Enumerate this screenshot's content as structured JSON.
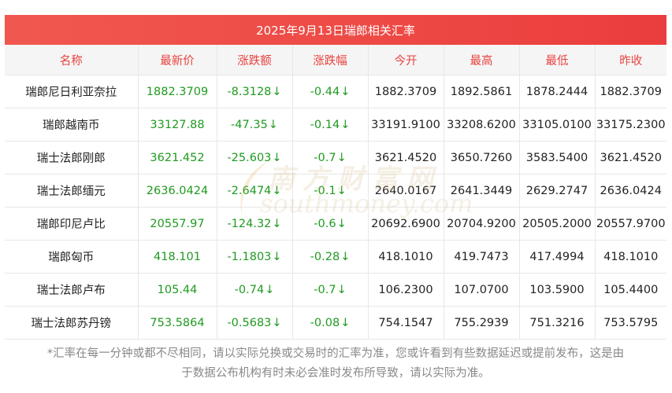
{
  "title": "2025年9月13日瑞郎相关汇率",
  "headers": [
    "名称",
    "最新价",
    "涨跌额",
    "涨跌幅",
    "今开",
    "最高",
    "最低",
    "昨收"
  ],
  "down_arrow": "↓",
  "rows": [
    {
      "name": "瑞郎尼日利亚奈拉",
      "latest": "1882.3709",
      "change": "-8.3128",
      "pct": "-0.44",
      "open": "1882.3709",
      "high": "1892.5861",
      "low": "1878.2444",
      "prev": "1882.3709"
    },
    {
      "name": "瑞郎越南币",
      "latest": "33127.88",
      "change": "-47.35",
      "pct": "-0.14",
      "open": "33191.9100",
      "high": "33208.6200",
      "low": "33105.0100",
      "prev": "33175.2300"
    },
    {
      "name": "瑞士法郎刚郎",
      "latest": "3621.452",
      "change": "-25.603",
      "pct": "-0.7",
      "open": "3621.4520",
      "high": "3650.7260",
      "low": "3583.5400",
      "prev": "3621.4520"
    },
    {
      "name": "瑞士法郎缅元",
      "latest": "2636.0424",
      "change": "-2.6474",
      "pct": "-0.1",
      "open": "2640.0167",
      "high": "2641.3449",
      "low": "2629.2747",
      "prev": "2636.0424"
    },
    {
      "name": "瑞郎印尼卢比",
      "latest": "20557.97",
      "change": "-124.32",
      "pct": "-0.6",
      "open": "20692.6900",
      "high": "20704.9200",
      "low": "20505.2000",
      "prev": "20557.9700"
    },
    {
      "name": "瑞郎匈币",
      "latest": "418.101",
      "change": "-1.1803",
      "pct": "-0.28",
      "open": "418.1010",
      "high": "419.7473",
      "low": "417.4994",
      "prev": "418.1010"
    },
    {
      "name": "瑞士法郎卢布",
      "latest": "105.44",
      "change": "-0.74",
      "pct": "-0.7",
      "open": "106.2300",
      "high": "107.0700",
      "low": "103.5900",
      "prev": "105.4400"
    },
    {
      "name": "瑞士法郎苏丹镑",
      "latest": "753.5864",
      "change": "-0.5683",
      "pct": "-0.08",
      "open": "754.1547",
      "high": "755.2939",
      "low": "751.3216",
      "prev": "753.5795"
    }
  ],
  "watermark": {
    "cn": "南方财富网",
    "en": "southmoney.com"
  },
  "footnote": {
    "line1": "*汇率在每一分钟或都不尽相同，请以实际兑换或交易时的汇率为准，您或许看到有些数据延迟或提前发布，这是由",
    "line2": "于数据公布机构有时未必会准时发布所导致，请以实际为准。"
  },
  "colors": {
    "accent": "#e8433f",
    "up_down": "#1f9a1f",
    "header_bg": "#f5f5f5"
  }
}
